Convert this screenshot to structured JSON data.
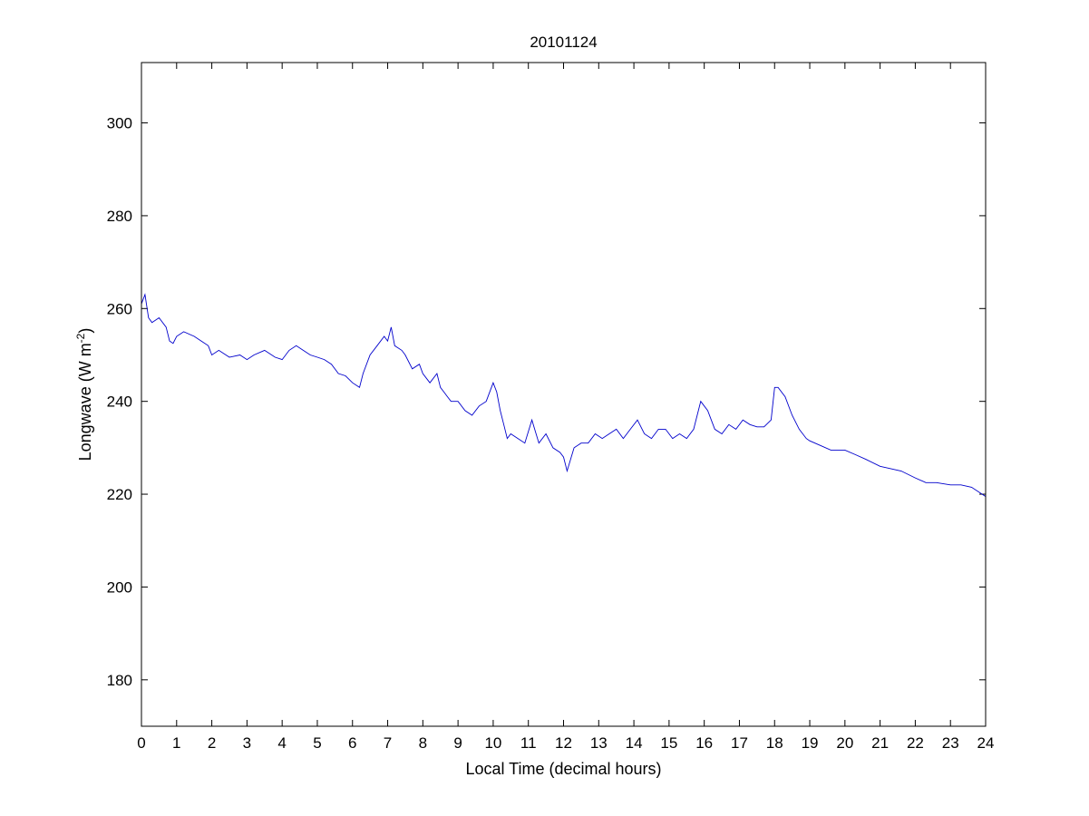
{
  "chart_data": {
    "type": "line",
    "title": "20101124",
    "xlabel": "Local Time (decimal hours)",
    "ylabel_main": "Longwave (W m",
    "ylabel_sup": "-2",
    "ylabel_close": ")",
    "xlim": [
      0,
      24
    ],
    "ylim": [
      170,
      313
    ],
    "xticks": [
      0,
      1,
      2,
      3,
      4,
      5,
      6,
      7,
      8,
      9,
      10,
      11,
      12,
      13,
      14,
      15,
      16,
      17,
      18,
      19,
      20,
      21,
      22,
      23,
      24
    ],
    "yticks": [
      180,
      200,
      220,
      240,
      260,
      280,
      300
    ],
    "grid": false,
    "line_color": "#0000cc",
    "series": [
      {
        "x": [
          0,
          0.1,
          0.2,
          0.3,
          0.5,
          0.7,
          0.8,
          0.9,
          1.0,
          1.2,
          1.5,
          1.7,
          1.9,
          2.0,
          2.2,
          2.5,
          2.8,
          3.0,
          3.2,
          3.5,
          3.8,
          4.0,
          4.2,
          4.4,
          4.6,
          4.8,
          5.0,
          5.2,
          5.4,
          5.6,
          5.8,
          6.0,
          6.2,
          6.3,
          6.5,
          6.7,
          6.9,
          7.0,
          7.1,
          7.2,
          7.4,
          7.5,
          7.7,
          7.9,
          8.0,
          8.2,
          8.4,
          8.5,
          8.6,
          8.7,
          8.8,
          9.0,
          9.2,
          9.4,
          9.6,
          9.8,
          10.0,
          10.1,
          10.2,
          10.3,
          10.4,
          10.5,
          10.7,
          10.9,
          11.1,
          11.3,
          11.5,
          11.7,
          11.9,
          12.0,
          12.1,
          12.3,
          12.5,
          12.7,
          12.9,
          13.1,
          13.3,
          13.5,
          13.7,
          13.9,
          14.1,
          14.3,
          14.5,
          14.7,
          14.9,
          15.1,
          15.3,
          15.5,
          15.7,
          15.9,
          16.1,
          16.3,
          16.5,
          16.7,
          16.9,
          17.1,
          17.3,
          17.5,
          17.7,
          17.9,
          18.0,
          18.1,
          18.3,
          18.5,
          18.7,
          18.9,
          19.0,
          19.3,
          19.6,
          20.0,
          20.3,
          20.6,
          21.0,
          21.3,
          21.6,
          22.0,
          22.3,
          22.6,
          23.0,
          23.3,
          23.6,
          24.0
        ],
        "y": [
          261,
          263,
          258,
          257,
          258,
          256,
          253,
          252.5,
          254,
          255,
          254,
          253,
          252,
          250,
          251,
          249.5,
          250,
          249,
          250,
          251,
          249.5,
          249,
          251,
          252,
          251,
          250,
          249.5,
          249,
          248,
          246,
          245.5,
          244,
          243,
          246,
          250,
          252,
          254,
          253,
          256,
          252,
          251,
          250,
          247,
          248,
          246,
          244,
          246,
          243,
          242,
          241,
          240,
          240,
          238,
          237,
          239,
          240,
          244,
          242,
          238,
          235,
          232,
          233,
          232,
          231,
          236,
          231,
          233,
          230,
          229,
          228,
          225,
          230,
          231,
          231,
          233,
          232,
          233,
          234,
          232,
          234,
          236,
          233,
          232,
          234,
          234,
          232,
          233,
          232,
          234,
          240,
          238,
          234,
          233,
          235,
          234,
          236,
          235,
          234.5,
          234.5,
          236,
          243,
          243,
          241,
          237,
          234,
          232,
          231.5,
          230.5,
          229.5,
          229.5,
          228.5,
          227.5,
          226,
          225.5,
          225,
          223.5,
          222.5,
          222.5,
          222,
          222,
          221.5,
          219.5
        ]
      }
    ]
  }
}
